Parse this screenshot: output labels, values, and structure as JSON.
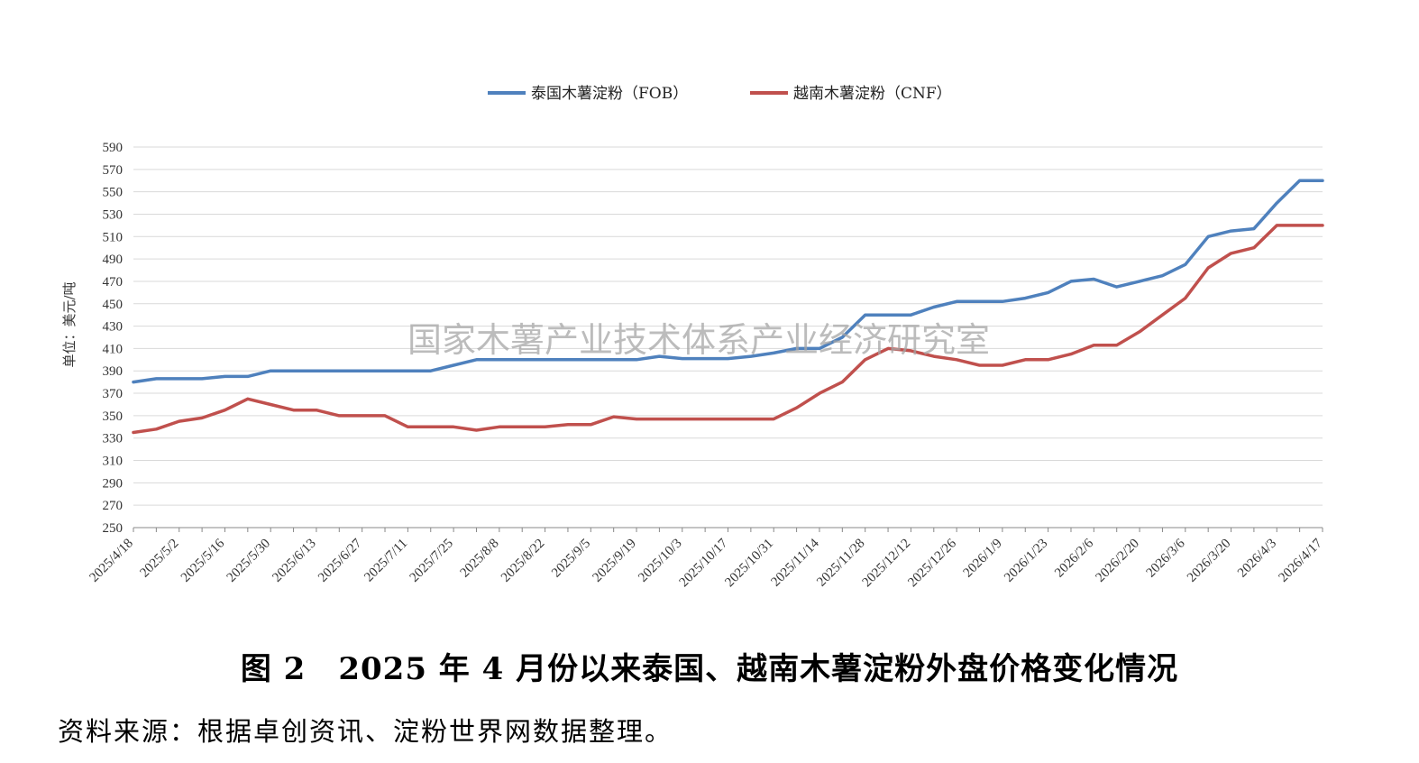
{
  "caption": {
    "figure_number": "图 2",
    "title": "2025 年 4 月份以来泰国、越南木薯淀粉外盘价格变化情况"
  },
  "source_note": "资料来源：根据卓创资讯、淀粉世界网数据整理。",
  "watermark": "国家木薯产业技术体系产业经济研究室",
  "chart_data": {
    "type": "line",
    "title": "",
    "xlabel": "",
    "ylabel": "单位：美元/吨",
    "ylim": [
      250,
      590
    ],
    "yticks": [
      250,
      270,
      290,
      310,
      330,
      350,
      370,
      390,
      410,
      430,
      450,
      470,
      490,
      510,
      530,
      550,
      570,
      590
    ],
    "grid": true,
    "legend_position": "top",
    "x": [
      "2025/4/18",
      "2025/4/25",
      "2025/5/2",
      "2025/5/9",
      "2025/5/16",
      "2025/5/23",
      "2025/5/30",
      "2025/6/6",
      "2025/6/13",
      "2025/6/20",
      "2025/6/27",
      "2025/7/4",
      "2025/7/11",
      "2025/7/18",
      "2025/7/25",
      "2025/8/1",
      "2025/8/8",
      "2025/8/15",
      "2025/8/22",
      "2025/8/29",
      "2025/9/5",
      "2025/9/12",
      "2025/9/19",
      "2025/9/26",
      "2025/10/3",
      "2025/10/10",
      "2025/10/17",
      "2025/10/24",
      "2025/10/31",
      "2025/11/7",
      "2025/11/14",
      "2025/11/21",
      "2025/11/28",
      "2025/12/5",
      "2025/12/12",
      "2025/12/19",
      "2025/12/26",
      "2026/1/2",
      "2026/1/9",
      "2026/1/16",
      "2026/1/23",
      "2026/1/30",
      "2026/2/6",
      "2026/2/13",
      "2026/2/20",
      "2026/2/27",
      "2026/3/6",
      "2026/3/13",
      "2026/3/20",
      "2026/3/27",
      "2026/4/3",
      "2026/4/10",
      "2026/4/17"
    ],
    "xtick_labels": [
      "2025/4/18",
      "2025/5/2",
      "2025/5/16",
      "2025/5/30",
      "2025/6/13",
      "2025/6/27",
      "2025/7/11",
      "2025/7/25",
      "2025/8/8",
      "2025/8/22",
      "2025/9/5",
      "2025/9/19",
      "2025/10/3",
      "2025/10/17",
      "2025/10/31",
      "2025/11/14",
      "2025/11/28",
      "2025/12/12",
      "2025/12/26",
      "2026/1/9",
      "2026/1/23",
      "2026/2/6",
      "2026/2/20",
      "2026/3/6",
      "2026/3/20",
      "2026/4/3",
      "2026/4/17"
    ],
    "series": [
      {
        "name": "泰国木薯淀粉（FOB）",
        "color": "#4f81bd",
        "values": [
          380,
          383,
          383,
          383,
          385,
          385,
          390,
          390,
          390,
          390,
          390,
          390,
          390,
          390,
          395,
          400,
          400,
          400,
          400,
          400,
          400,
          400,
          400,
          403,
          401,
          401,
          401,
          403,
          406,
          410,
          410,
          420,
          440,
          440,
          440,
          447,
          452,
          452,
          452,
          455,
          460,
          470,
          472,
          465,
          470,
          475,
          485,
          510,
          515,
          517,
          540,
          560,
          560
        ]
      },
      {
        "name": "越南木薯淀粉（CNF）",
        "color": "#c0504d",
        "values": [
          335,
          338,
          345,
          348,
          355,
          365,
          360,
          355,
          355,
          350,
          350,
          350,
          340,
          340,
          340,
          337,
          340,
          340,
          340,
          342,
          342,
          349,
          347,
          347,
          347,
          347,
          347,
          347,
          347,
          357,
          370,
          380,
          400,
          410,
          408,
          403,
          400,
          395,
          395,
          400,
          400,
          405,
          413,
          413,
          425,
          440,
          455,
          482,
          495,
          500,
          520,
          520,
          520
        ]
      }
    ]
  }
}
